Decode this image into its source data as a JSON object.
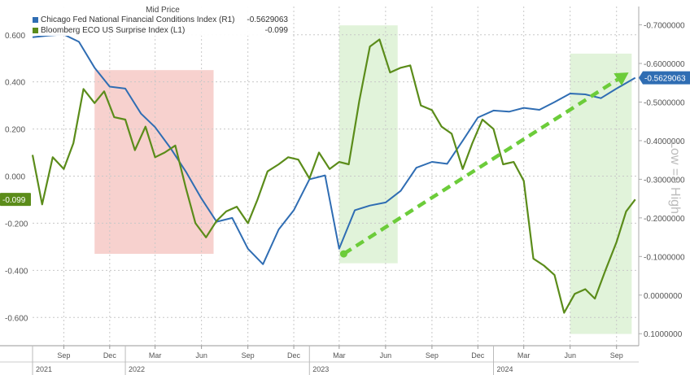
{
  "chart_data": {
    "type": "line",
    "title": "",
    "legend": {
      "title": "Mid Price",
      "entries": [
        {
          "name": "Chicago Fed National Financial Conditions Index",
          "axis": "(R1)",
          "value": "-0.5629063",
          "color": "#2f6db3"
        },
        {
          "name": "Bloomberg ECO US Surprise Index",
          "axis": "(L1)",
          "value": "-0.099",
          "color": "#5b8c1a"
        }
      ],
      "placement": "top-left"
    },
    "x_range": [
      "2021-07-01",
      "2024-10-15"
    ],
    "left_axis": {
      "ticks": [
        "0.600",
        "0.400",
        "0.200",
        "0.000",
        "-0.200",
        "-0.400",
        "-0.600"
      ],
      "tick_values": [
        0.6,
        0.4,
        0.2,
        0.0,
        -0.2,
        -0.4,
        -0.6
      ],
      "range": [
        -0.72,
        0.72
      ]
    },
    "right_axis": {
      "ticks": [
        "-0.7000000",
        "-0.6000000",
        "-0.5000000",
        "-0.4000000",
        "-0.3000000",
        "-0.2000000",
        "-0.1000000",
        "0.0000000",
        "0.1000000"
      ],
      "tick_values": [
        -0.7,
        -0.6,
        -0.5,
        -0.4,
        -0.3,
        -0.2,
        -0.1,
        0.0,
        0.1
      ],
      "range": [
        -0.7475,
        0.1311
      ],
      "inverted": true,
      "side_label": "Low => High"
    },
    "x_ticks": [
      {
        "label": "Sep",
        "date": "2021-09-01"
      },
      {
        "label": "Dec",
        "date": "2021-12-01"
      },
      {
        "label": "Mar",
        "date": "2022-03-01"
      },
      {
        "label": "Jun",
        "date": "2022-06-01"
      },
      {
        "label": "Sep",
        "date": "2022-09-01"
      },
      {
        "label": "Dec",
        "date": "2022-12-01"
      },
      {
        "label": "Mar",
        "date": "2023-03-01"
      },
      {
        "label": "Jun",
        "date": "2023-06-01"
      },
      {
        "label": "Sep",
        "date": "2023-09-01"
      },
      {
        "label": "Dec",
        "date": "2023-12-01"
      },
      {
        "label": "Mar",
        "date": "2024-03-01"
      },
      {
        "label": "Jun",
        "date": "2024-06-01"
      },
      {
        "label": "Sep",
        "date": "2024-09-01"
      }
    ],
    "years": [
      {
        "label": "2021",
        "date": "2021-07-01"
      },
      {
        "label": "2022",
        "date": "2022-01-01"
      },
      {
        "label": "2023",
        "date": "2023-01-01"
      },
      {
        "label": "2024",
        "date": "2024-01-01"
      }
    ],
    "series": [
      {
        "name": "Chicago Fed National Financial Conditions Index",
        "axis": "right",
        "color": "#2f6db3",
        "x": [
          "2021-07-01",
          "2021-08-01",
          "2021-09-01",
          "2021-10-01",
          "2021-11-01",
          "2021-12-01",
          "2022-01-01",
          "2022-02-01",
          "2022-03-01",
          "2022-04-01",
          "2022-05-01",
          "2022-06-01",
          "2022-07-01",
          "2022-08-01",
          "2022-09-01",
          "2022-10-01",
          "2022-11-01",
          "2022-12-01",
          "2023-01-01",
          "2023-02-01",
          "2023-03-01",
          "2023-04-01",
          "2023-05-01",
          "2023-06-01",
          "2023-07-01",
          "2023-08-01",
          "2023-09-01",
          "2023-10-01",
          "2023-11-01",
          "2023-12-01",
          "2024-01-01",
          "2024-02-01",
          "2024-03-01",
          "2024-04-01",
          "2024-05-01",
          "2024-06-01",
          "2024-07-01",
          "2024-08-01",
          "2024-09-01",
          "2024-10-08"
        ],
        "y": [
          -0.668,
          -0.672,
          -0.675,
          -0.656,
          -0.589,
          -0.54,
          -0.535,
          -0.47,
          -0.435,
          -0.38,
          -0.32,
          -0.25,
          -0.19,
          -0.2,
          -0.12,
          -0.08,
          -0.17,
          -0.22,
          -0.3,
          -0.31,
          -0.12,
          -0.22,
          -0.232,
          -0.24,
          -0.27,
          -0.33,
          -0.345,
          -0.34,
          -0.4,
          -0.46,
          -0.478,
          -0.475,
          -0.485,
          -0.48,
          -0.5,
          -0.522,
          -0.52,
          -0.51,
          -0.535,
          -0.5629063
        ]
      },
      {
        "name": "Bloomberg ECO US Surprise Index",
        "axis": "left",
        "color": "#5b8c1a",
        "x": [
          "2021-07-01",
          "2021-07-20",
          "2021-08-10",
          "2021-09-01",
          "2021-09-20",
          "2021-10-10",
          "2021-11-01",
          "2021-11-20",
          "2021-12-10",
          "2022-01-01",
          "2022-01-20",
          "2022-02-10",
          "2022-03-01",
          "2022-03-20",
          "2022-04-10",
          "2022-05-01",
          "2022-05-20",
          "2022-06-10",
          "2022-07-01",
          "2022-07-20",
          "2022-08-10",
          "2022-09-01",
          "2022-09-20",
          "2022-10-10",
          "2022-11-01",
          "2022-11-20",
          "2022-12-10",
          "2023-01-01",
          "2023-01-20",
          "2023-02-10",
          "2023-03-01",
          "2023-03-20",
          "2023-04-10",
          "2023-05-01",
          "2023-05-20",
          "2023-06-10",
          "2023-07-01",
          "2023-07-20",
          "2023-08-10",
          "2023-09-01",
          "2023-09-20",
          "2023-10-10",
          "2023-11-01",
          "2023-11-20",
          "2023-12-10",
          "2024-01-01",
          "2024-01-20",
          "2024-02-10",
          "2024-03-01",
          "2024-03-20",
          "2024-04-10",
          "2024-05-01",
          "2024-05-20",
          "2024-06-10",
          "2024-07-01",
          "2024-07-20",
          "2024-08-10",
          "2024-09-01",
          "2024-09-20",
          "2024-10-08"
        ],
        "y": [
          0.09,
          -0.12,
          0.08,
          0.03,
          0.14,
          0.37,
          0.31,
          0.36,
          0.25,
          0.24,
          0.11,
          0.21,
          0.08,
          0.1,
          0.13,
          -0.05,
          -0.2,
          -0.26,
          -0.19,
          -0.15,
          -0.13,
          -0.2,
          -0.1,
          0.02,
          0.05,
          0.08,
          0.07,
          -0.01,
          0.1,
          0.03,
          0.06,
          0.05,
          0.32,
          0.55,
          0.58,
          0.44,
          0.46,
          0.47,
          0.3,
          0.28,
          0.21,
          0.18,
          0.03,
          0.14,
          0.24,
          0.2,
          0.05,
          0.06,
          -0.02,
          -0.35,
          -0.38,
          -0.42,
          -0.58,
          -0.5,
          -0.48,
          -0.52,
          -0.4,
          -0.28,
          -0.15,
          -0.099
        ]
      }
    ],
    "shaded_regions": [
      {
        "start": "2021-11-01",
        "end": "2022-06-25",
        "top": 0.45,
        "bottom": -0.33,
        "color": "#f6c9c6"
      },
      {
        "start": "2023-03-01",
        "end": "2023-06-25",
        "top": 0.64,
        "bottom": -0.37,
        "color": "#dcf1d3"
      },
      {
        "start": "2024-06-01",
        "end": "2024-10-01",
        "top": 0.52,
        "bottom": -0.67,
        "color": "#dcf1d3"
      }
    ],
    "arrow": {
      "start_date": "2023-03-10",
      "start_value": -0.33,
      "end_date": "2024-09-25",
      "end_value": 0.44,
      "color": "#6ccc3a"
    },
    "end_labels": {
      "left": "-0.099",
      "right": "-0.5629063"
    },
    "grid": true
  }
}
